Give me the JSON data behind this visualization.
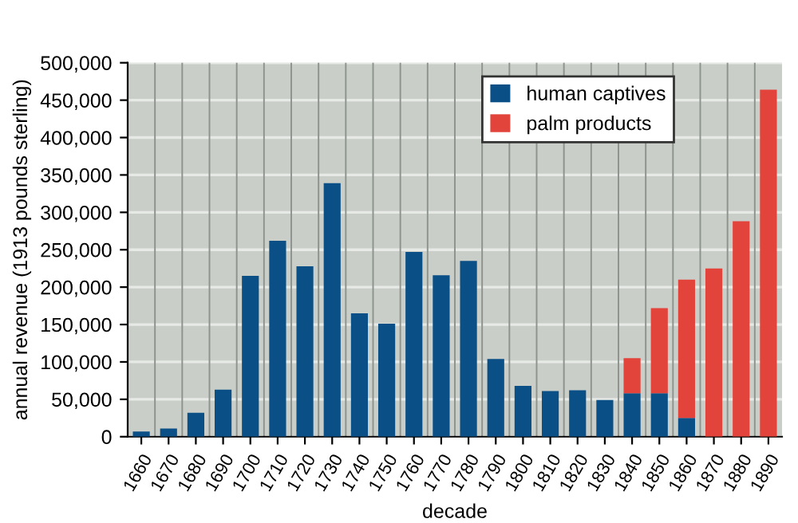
{
  "chart_data": {
    "type": "bar",
    "xlabel": "decade",
    "ylabel": "annual revenue (1913 pounds sterling)",
    "categories": [
      "1660",
      "1670",
      "1680",
      "1690",
      "1700",
      "1710",
      "1720",
      "1730",
      "1740",
      "1750",
      "1760",
      "1770",
      "1780",
      "1790",
      "1800",
      "1810",
      "1820",
      "1830",
      "1840",
      "1850",
      "1860",
      "1870",
      "1880",
      "1890"
    ],
    "stacked": true,
    "series": [
      {
        "name": "human captives",
        "color": "#0b4f87",
        "values": [
          7000,
          11000,
          32000,
          63000,
          215000,
          262000,
          228000,
          339000,
          165000,
          151000,
          247000,
          216000,
          235000,
          104000,
          68000,
          61000,
          62000,
          49000,
          58000,
          58000,
          25000,
          null,
          null,
          null
        ]
      },
      {
        "name": "palm products",
        "color": "#e2433a",
        "values": [
          null,
          null,
          null,
          null,
          null,
          null,
          null,
          null,
          null,
          null,
          null,
          null,
          null,
          null,
          null,
          null,
          null,
          null,
          47000,
          114000,
          185000,
          225000,
          288000,
          464000
        ]
      }
    ],
    "ylim": [
      0,
      500000
    ],
    "yticks": [
      {
        "value": 0,
        "label": "0"
      },
      {
        "value": 50000,
        "label": "50,000"
      },
      {
        "value": 100000,
        "label": "100,000"
      },
      {
        "value": 150000,
        "label": "150,000"
      },
      {
        "value": 200000,
        "label": "200,000"
      },
      {
        "value": 250000,
        "label": "250,000"
      },
      {
        "value": 300000,
        "label": "300,000"
      },
      {
        "value": 350000,
        "label": "350,000"
      },
      {
        "value": 400000,
        "label": "400,000"
      },
      {
        "value": 450000,
        "label": "450,000"
      },
      {
        "value": 500000,
        "label": "500,000"
      }
    ],
    "grid": true,
    "legend": "top right"
  }
}
